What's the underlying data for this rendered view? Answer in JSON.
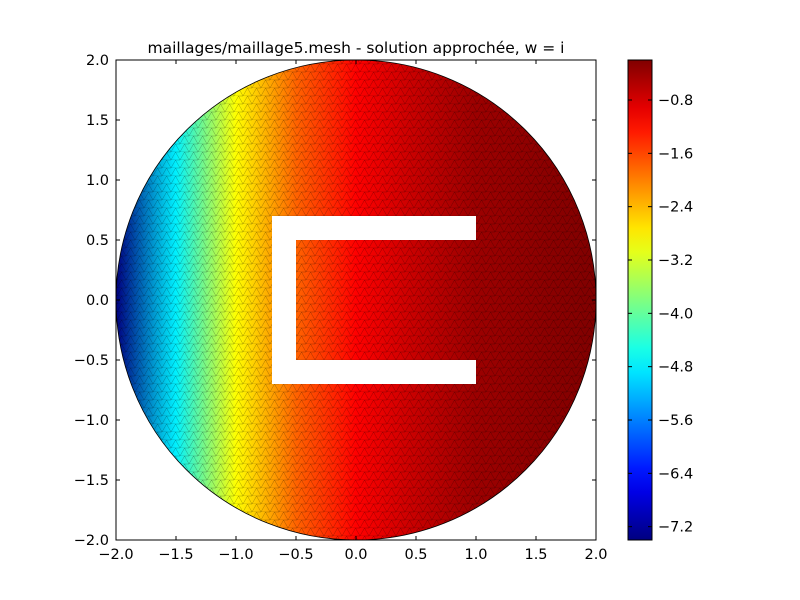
{
  "chart_data": {
    "type": "heatmap",
    "title": "maillages/maillage5.mesh - solution approchée, w = i",
    "xlabel": "",
    "ylabel": "",
    "xlim": [
      -2.0,
      2.0
    ],
    "ylim": [
      -2.0,
      2.0
    ],
    "x_ticks": [
      "−2.0",
      "−1.5",
      "−1.0",
      "−0.5",
      "0.0",
      "0.5",
      "1.0",
      "1.5",
      "2.0"
    ],
    "y_ticks": [
      "−2.0",
      "−1.5",
      "−1.0",
      "−0.5",
      "0.0",
      "0.5",
      "1.0",
      "1.5",
      "2.0"
    ],
    "x_tick_values": [
      -2.0,
      -1.5,
      -1.0,
      -0.5,
      0.0,
      0.5,
      1.0,
      1.5,
      2.0
    ],
    "y_tick_values": [
      -2.0,
      -1.5,
      -1.0,
      -0.5,
      0.0,
      0.5,
      1.0,
      1.5,
      2.0
    ],
    "domain": {
      "shape": "disk",
      "center": [
        0.0,
        0.0
      ],
      "radius": 2.0,
      "hole": {
        "shape": "C-bracket",
        "outer": {
          "x0": -0.7,
          "x1": 1.0,
          "y0": -0.7,
          "y1": 0.7
        },
        "inner_cut": {
          "x0": -0.5,
          "x1": 1.0,
          "y0": -0.5,
          "y1": 0.5
        }
      }
    },
    "field": {
      "description": "solution increases from left to right",
      "samples_x": [
        -2.0,
        -1.5,
        -1.0,
        -0.5,
        0.0,
        0.5,
        1.0,
        1.5,
        2.0
      ],
      "samples_value": [
        -7.4,
        -4.8,
        -2.9,
        -1.8,
        -1.1,
        -0.7,
        -0.4,
        -0.3,
        -0.2
      ]
    },
    "colormap": "jet",
    "colorbar": {
      "vmin": -7.4,
      "vmax": -0.2,
      "tick_values": [
        -7.2,
        -6.4,
        -5.6,
        -4.8,
        -4.0,
        -3.2,
        -2.4,
        -1.6,
        -0.8
      ],
      "tick_labels": [
        "−7.2",
        "−6.4",
        "−5.6",
        "−4.8",
        "−4.0",
        "−3.2",
        "−2.4",
        "−1.6",
        "−0.8"
      ]
    },
    "grid": false,
    "mesh_visible": true
  }
}
